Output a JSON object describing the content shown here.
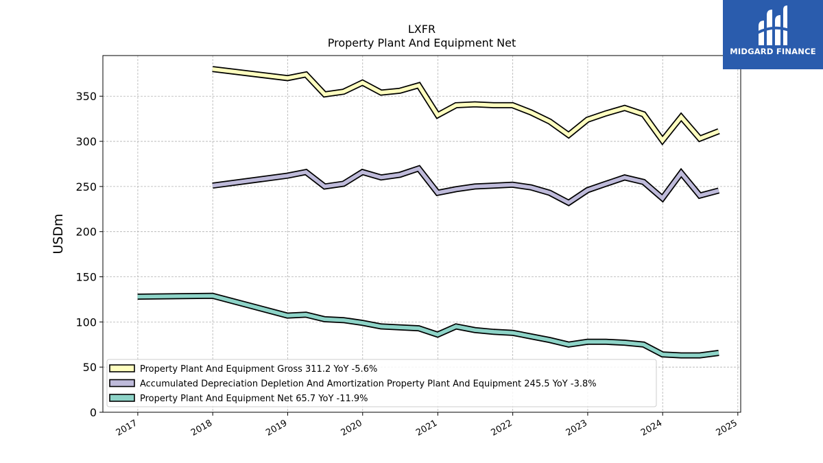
{
  "brand": {
    "name": "MIDGARD FINANCE",
    "color": "#2a5cad",
    "icon": "midgard-logo-icon"
  },
  "chart_data": {
    "type": "line",
    "title": "LXFR",
    "subtitle": "Property Plant And Equipment Net",
    "xlabel": "",
    "ylabel": "USDm",
    "xlim": [
      "2016-07-15",
      "2025-01-15"
    ],
    "ylim": [
      0,
      395
    ],
    "x_ticks": [
      "2017",
      "2018",
      "2019",
      "2020",
      "2021",
      "2022",
      "2023",
      "2024",
      "2025"
    ],
    "y_ticks": [
      0,
      50,
      100,
      150,
      200,
      250,
      300,
      350
    ],
    "grid": true,
    "legend_position": "lower-left",
    "series": [
      {
        "name": "Property Plant And Equipment Gross",
        "legend_label": "Property Plant And Equipment Gross  311.2 YoY -5.6%",
        "color": "#ffffbf",
        "points": [
          [
            "2017-12-31",
            380
          ],
          [
            "2018-12-31",
            370
          ],
          [
            "2019-03-31",
            374
          ],
          [
            "2019-06-30",
            352
          ],
          [
            "2019-09-30",
            355
          ],
          [
            "2019-12-31",
            365
          ],
          [
            "2020-03-31",
            354
          ],
          [
            "2020-06-30",
            356
          ],
          [
            "2020-09-30",
            362
          ],
          [
            "2020-12-31",
            329
          ],
          [
            "2021-03-31",
            340
          ],
          [
            "2021-06-30",
            341
          ],
          [
            "2021-09-30",
            340
          ],
          [
            "2021-12-31",
            340
          ],
          [
            "2022-03-31",
            332
          ],
          [
            "2022-06-30",
            322
          ],
          [
            "2022-09-30",
            307
          ],
          [
            "2022-12-31",
            324
          ],
          [
            "2023-03-31",
            331
          ],
          [
            "2023-06-30",
            337
          ],
          [
            "2023-09-30",
            330
          ],
          [
            "2023-12-31",
            301
          ],
          [
            "2024-03-31",
            327
          ],
          [
            "2024-06-30",
            303
          ],
          [
            "2024-09-30",
            311.2
          ]
        ]
      },
      {
        "name": "Accumulated Depreciation Depletion And Amortization Property Plant And Equipment",
        "legend_label": "Accumulated Depreciation Depletion And Amortization Property Plant And Equipment  245.5 YoY -3.8%",
        "color": "#bebada",
        "points": [
          [
            "2017-12-31",
            251
          ],
          [
            "2018-12-31",
            262
          ],
          [
            "2019-03-31",
            266
          ],
          [
            "2019-06-30",
            250
          ],
          [
            "2019-09-30",
            253
          ],
          [
            "2019-12-31",
            266
          ],
          [
            "2020-03-31",
            260
          ],
          [
            "2020-06-30",
            263
          ],
          [
            "2020-09-30",
            270
          ],
          [
            "2020-12-31",
            243
          ],
          [
            "2021-03-31",
            247
          ],
          [
            "2021-06-30",
            250
          ],
          [
            "2021-09-30",
            251
          ],
          [
            "2021-12-31",
            252
          ],
          [
            "2022-03-31",
            249
          ],
          [
            "2022-06-30",
            243
          ],
          [
            "2022-09-30",
            232
          ],
          [
            "2022-12-31",
            246
          ],
          [
            "2023-03-31",
            253
          ],
          [
            "2023-06-30",
            260
          ],
          [
            "2023-09-30",
            255
          ],
          [
            "2023-12-31",
            237
          ],
          [
            "2024-03-31",
            265
          ],
          [
            "2024-06-30",
            240
          ],
          [
            "2024-09-30",
            245.5
          ]
        ]
      },
      {
        "name": "Property Plant And Equipment Net",
        "legend_label": "Property Plant And Equipment Net  65.7 YoY -11.9%",
        "color": "#8dd3c7",
        "points": [
          [
            "2016-12-31",
            128
          ],
          [
            "2017-12-31",
            129
          ],
          [
            "2018-12-31",
            107
          ],
          [
            "2019-03-31",
            108
          ],
          [
            "2019-06-30",
            103
          ],
          [
            "2019-09-30",
            102
          ],
          [
            "2019-12-31",
            99
          ],
          [
            "2020-03-31",
            95
          ],
          [
            "2020-06-30",
            94
          ],
          [
            "2020-09-30",
            93
          ],
          [
            "2020-12-31",
            86
          ],
          [
            "2021-03-31",
            95
          ],
          [
            "2021-06-30",
            91
          ],
          [
            "2021-09-30",
            89
          ],
          [
            "2021-12-31",
            88
          ],
          [
            "2022-03-31",
            84
          ],
          [
            "2022-06-30",
            80
          ],
          [
            "2022-09-30",
            75
          ],
          [
            "2022-12-31",
            78
          ],
          [
            "2023-03-31",
            78
          ],
          [
            "2023-06-30",
            77
          ],
          [
            "2023-09-30",
            75
          ],
          [
            "2023-12-31",
            64
          ],
          [
            "2024-03-31",
            63
          ],
          [
            "2024-06-30",
            63
          ],
          [
            "2024-09-30",
            65.7
          ]
        ]
      }
    ]
  }
}
